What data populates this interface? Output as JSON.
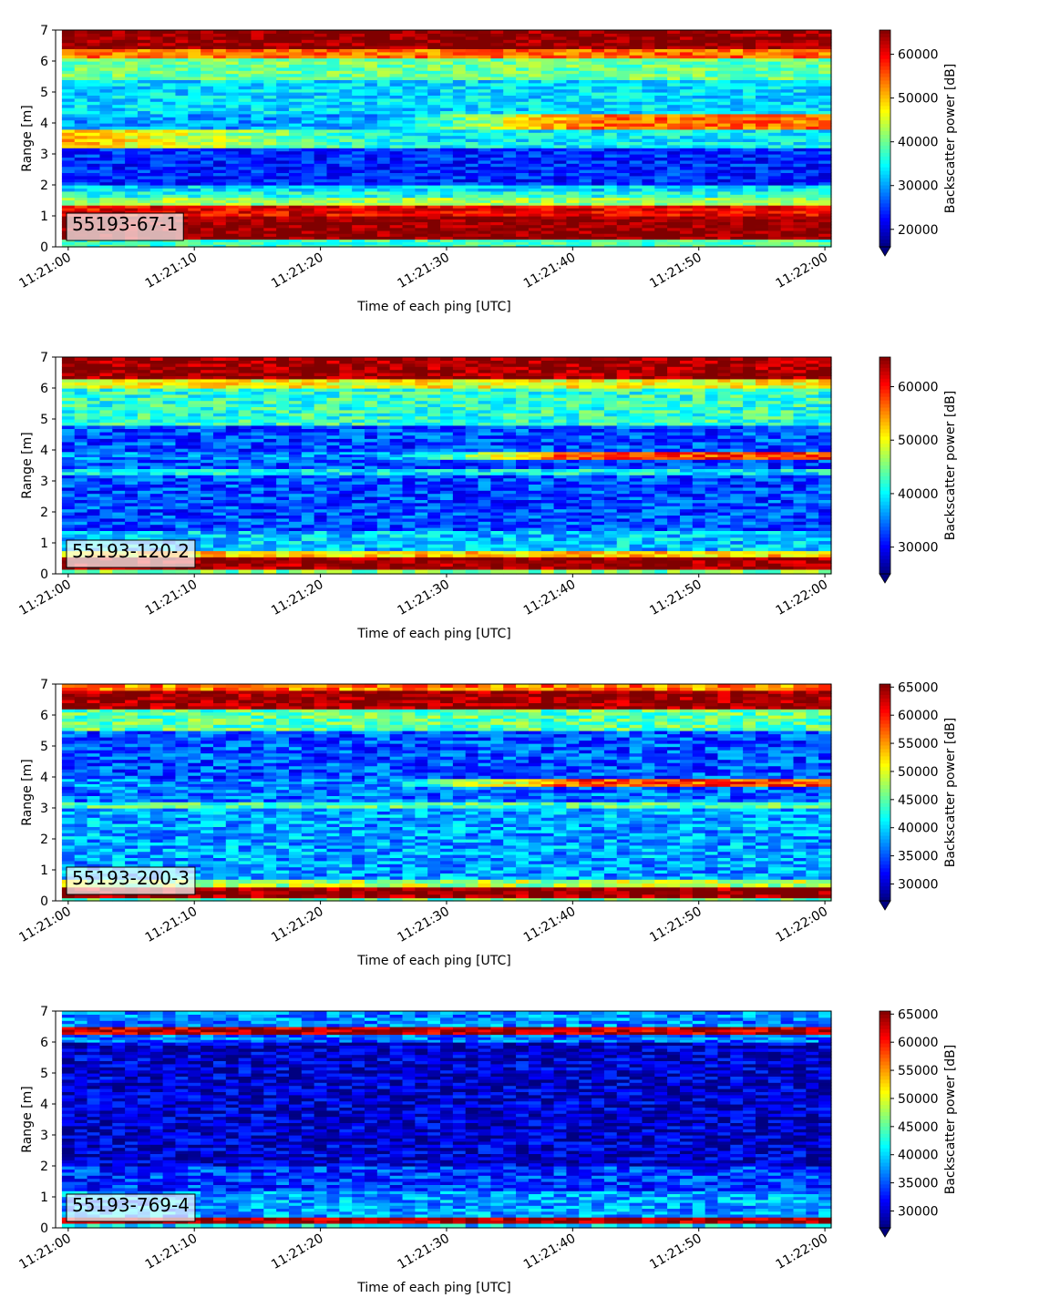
{
  "chart_data": [
    {
      "type": "heatmap",
      "label": "55193-67-1",
      "xlabel": "Time of each ping [UTC]",
      "ylabel": "Range [m]",
      "ylim": [
        0,
        7
      ],
      "yticks": [
        "0",
        "1",
        "2",
        "3",
        "4",
        "5",
        "6",
        "7"
      ],
      "xlim": [
        "11:20:59",
        "11:22:00.5"
      ],
      "xticks": [
        "11:21:00",
        "11:21:10",
        "11:21:20",
        "11:21:30",
        "11:21:40",
        "11:21:50",
        "11:22:00"
      ],
      "colorbar": {
        "label": "Backscatter power [dB]",
        "colormap": "jet",
        "min": 16000,
        "max": 65535,
        "extend": "min",
        "ticks": [
          "20000",
          "30000",
          "40000",
          "50000",
          "60000"
        ]
      },
      "pings": 61,
      "bands": [
        {
          "range": [
            0.0,
            0.25
          ],
          "value": 38000
        },
        {
          "range": [
            0.25,
            1.0
          ],
          "value": 65000
        },
        {
          "range": [
            1.0,
            1.35
          ],
          "value": 60000
        },
        {
          "range": [
            1.35,
            1.6
          ],
          "value": 42000
        },
        {
          "range": [
            1.6,
            1.8
          ],
          "value": 36000
        },
        {
          "range": [
            1.8,
            2.0
          ],
          "value": 33000
        },
        {
          "range": [
            2.0,
            3.2
          ],
          "value": 24000
        },
        {
          "range": [
            3.2,
            3.8
          ],
          "value": 34000,
          "early": 50000
        },
        {
          "range": [
            3.8,
            4.3
          ],
          "value": 30000,
          "late": 54000
        },
        {
          "range": [
            4.3,
            5.4
          ],
          "value": 33000
        },
        {
          "range": [
            5.4,
            6.1
          ],
          "value": 40000
        },
        {
          "range": [
            6.1,
            6.4
          ],
          "value": 54000
        },
        {
          "range": [
            6.4,
            7.0
          ],
          "value": 65000
        }
      ]
    },
    {
      "type": "heatmap",
      "label": "55193-120-2",
      "xlabel": "Time of each ping [UTC]",
      "ylabel": "Range [m]",
      "ylim": [
        0,
        7
      ],
      "yticks": [
        "0",
        "1",
        "2",
        "3",
        "4",
        "5",
        "6",
        "7"
      ],
      "xlim": [
        "11:20:59",
        "11:22:00.5"
      ],
      "xticks": [
        "11:21:00",
        "11:21:10",
        "11:21:20",
        "11:21:30",
        "11:21:40",
        "11:21:50",
        "11:22:00"
      ],
      "colorbar": {
        "label": "Backscatter power [dB]",
        "colormap": "jet",
        "min": 25000,
        "max": 65535,
        "extend": "min",
        "ticks": [
          "30000",
          "40000",
          "50000",
          "60000"
        ]
      },
      "pings": 61,
      "bands": [
        {
          "range": [
            0.0,
            0.15
          ],
          "value": 45000
        },
        {
          "range": [
            0.15,
            0.55
          ],
          "value": 65000
        },
        {
          "range": [
            0.55,
            0.75
          ],
          "value": 52000
        },
        {
          "range": [
            0.75,
            1.4
          ],
          "value": 38000
        },
        {
          "range": [
            1.4,
            3.2
          ],
          "value": 33000
        },
        {
          "range": [
            3.2,
            3.4
          ],
          "value": 40000
        },
        {
          "range": [
            3.4,
            3.7
          ],
          "value": 33000
        },
        {
          "range": [
            3.7,
            3.95
          ],
          "value": 35000,
          "late": 58000
        },
        {
          "range": [
            3.95,
            4.8
          ],
          "value": 33000
        },
        {
          "range": [
            4.8,
            6.0
          ],
          "value": 42000
        },
        {
          "range": [
            6.0,
            6.3
          ],
          "value": 50000
        },
        {
          "range": [
            6.3,
            7.0
          ],
          "value": 65000
        }
      ]
    },
    {
      "type": "heatmap",
      "label": "55193-200-3",
      "xlabel": "Time of each ping [UTC]",
      "ylabel": "Range [m]",
      "ylim": [
        0,
        7
      ],
      "yticks": [
        "0",
        "1",
        "2",
        "3",
        "4",
        "5",
        "6",
        "7"
      ],
      "xlim": [
        "11:20:59",
        "11:22:00.5"
      ],
      "xticks": [
        "11:21:00",
        "11:21:10",
        "11:21:20",
        "11:21:30",
        "11:21:40",
        "11:21:50",
        "11:22:00"
      ],
      "colorbar": {
        "label": "Backscatter power [dB]",
        "colormap": "jet",
        "min": 27000,
        "max": 65535,
        "extend": "min",
        "ticks": [
          "30000",
          "35000",
          "40000",
          "45000",
          "50000",
          "55000",
          "60000",
          "65000"
        ]
      },
      "pings": 61,
      "bands": [
        {
          "range": [
            0.0,
            0.1
          ],
          "value": 45000
        },
        {
          "range": [
            0.1,
            0.45
          ],
          "value": 65000
        },
        {
          "range": [
            0.45,
            0.7
          ],
          "value": 48000
        },
        {
          "range": [
            0.7,
            3.0
          ],
          "value": 38000
        },
        {
          "range": [
            3.0,
            3.2
          ],
          "value": 44000
        },
        {
          "range": [
            3.2,
            3.7
          ],
          "value": 36000
        },
        {
          "range": [
            3.7,
            3.95
          ],
          "value": 37000,
          "late": 58000
        },
        {
          "range": [
            3.95,
            5.5
          ],
          "value": 35000
        },
        {
          "range": [
            5.5,
            6.2
          ],
          "value": 45000
        },
        {
          "range": [
            6.2,
            6.8
          ],
          "value": 65000
        },
        {
          "range": [
            6.8,
            7.0
          ],
          "value": 56000
        }
      ]
    },
    {
      "type": "heatmap",
      "label": "55193-769-4",
      "xlabel": "Time of each ping [UTC]",
      "ylabel": "Range [m]",
      "ylim": [
        0,
        7
      ],
      "yticks": [
        "0",
        "1",
        "2",
        "3",
        "4",
        "5",
        "6",
        "7"
      ],
      "xlim": [
        "11:20:59",
        "11:22:00.5"
      ],
      "xticks": [
        "11:21:00",
        "11:21:10",
        "11:21:20",
        "11:21:30",
        "11:21:40",
        "11:21:50",
        "11:22:00"
      ],
      "colorbar": {
        "label": "Backscatter power [dB]",
        "colormap": "jet",
        "min": 27000,
        "max": 65535,
        "extend": "min",
        "ticks": [
          "30000",
          "35000",
          "40000",
          "45000",
          "50000",
          "55000",
          "60000",
          "65000"
        ]
      },
      "pings": 61,
      "bands": [
        {
          "range": [
            0.0,
            0.15
          ],
          "value": 40000
        },
        {
          "range": [
            0.15,
            0.35
          ],
          "value": 64000
        },
        {
          "range": [
            0.35,
            1.2
          ],
          "value": 38000
        },
        {
          "range": [
            1.2,
            2.0
          ],
          "value": 34000
        },
        {
          "range": [
            2.0,
            6.0
          ],
          "value": 30000
        },
        {
          "range": [
            6.0,
            6.25
          ],
          "value": 36000
        },
        {
          "range": [
            6.25,
            6.5
          ],
          "value": 63000
        },
        {
          "range": [
            6.5,
            7.0
          ],
          "value": 37000
        }
      ]
    }
  ]
}
